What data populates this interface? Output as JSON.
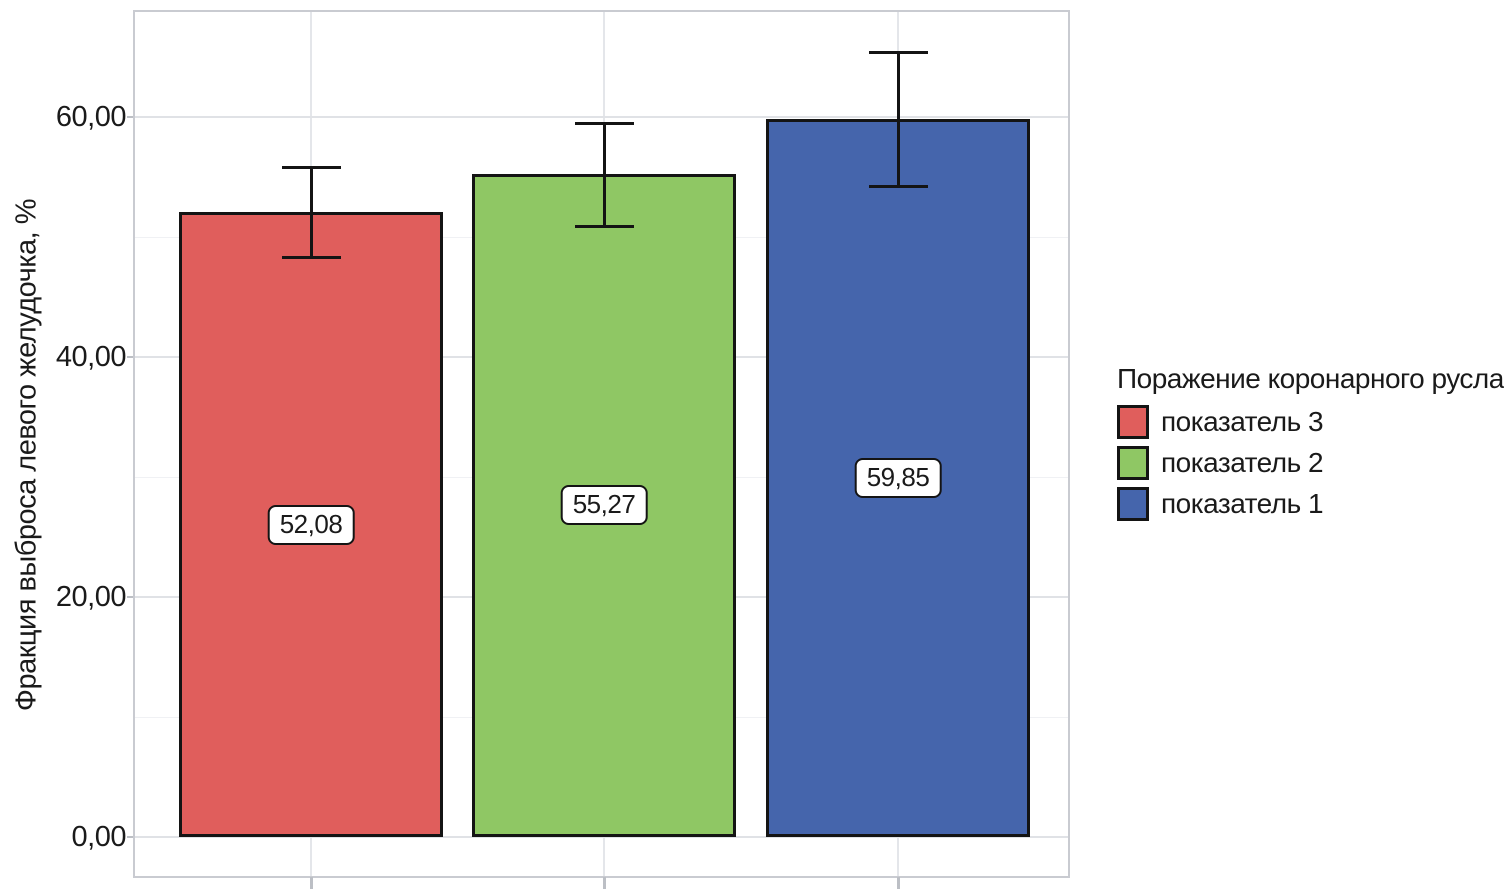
{
  "chart_data": {
    "type": "bar",
    "title": "",
    "xlabel": "",
    "ylabel": "Фракция выброса левого желудочка, %",
    "ylim": [
      0,
      68.7
    ],
    "yticks": [
      0,
      20,
      40,
      60
    ],
    "ytick_labels": [
      "0,00",
      "20,00",
      "40,00",
      "60,00"
    ],
    "minor_yticks": [
      10,
      30,
      50
    ],
    "grid": true,
    "decimal_separator": ",",
    "legend_position": "right",
    "legend_title": "Поражение коронарного русла",
    "series": [
      {
        "name": "показатель 3",
        "value": 52.08,
        "label": "52,08",
        "error_upper": 55.8,
        "error_lower": 48.3,
        "color": "#e05e5c"
      },
      {
        "name": "показатель 2",
        "value": 55.27,
        "label": "55,27",
        "error_upper": 59.5,
        "error_lower": 50.9,
        "color": "#8fc764"
      },
      {
        "name": "показатель 1",
        "value": 59.85,
        "label": "59,85",
        "error_upper": 65.4,
        "error_lower": 54.2,
        "color": "#4565ac"
      }
    ],
    "style": {
      "background": "#ffffff",
      "text_color": "#1a1a1a",
      "plot_border": "#c9cbd1",
      "grid_major": "#e0e2e6",
      "grid_minor": "#f0f1f4",
      "bar_border": "#141414",
      "error_bar_color": "#141414",
      "tick_color": "#bcbfc5",
      "value_label_bg": "#ffffff"
    }
  }
}
